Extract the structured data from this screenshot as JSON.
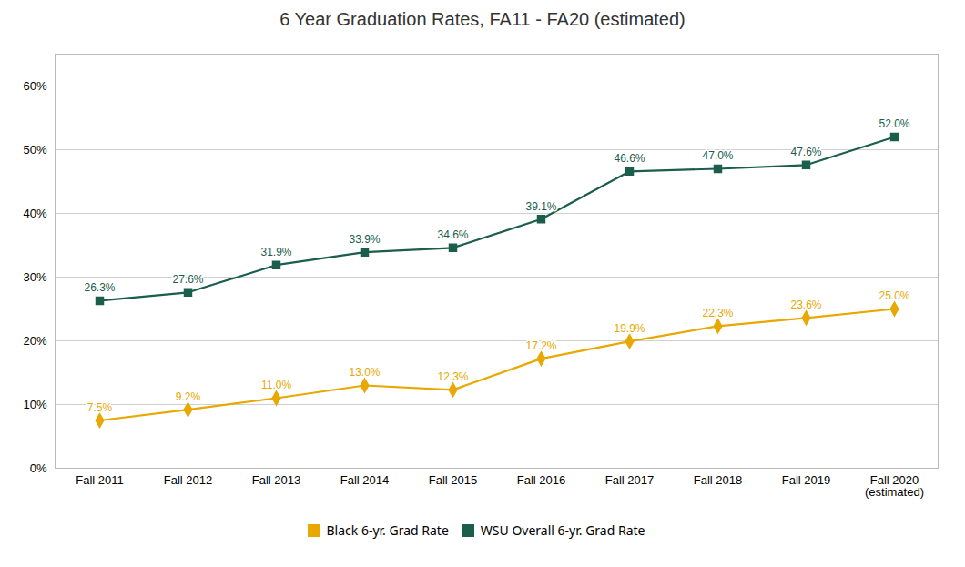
{
  "chart_data": {
    "type": "line",
    "title": "6 Year Graduation Rates, FA11 - FA20 (estimated)",
    "categories": [
      "Fall 2011",
      "Fall 2012",
      "Fall 2013",
      "Fall 2014",
      "Fall 2015",
      "Fall 2016",
      "Fall 2017",
      "Fall 2018",
      "Fall 2019",
      "Fall 2020\n(estimated)"
    ],
    "series": [
      {
        "name": "Black 6-yr. Grad Rate",
        "color": "#E8A800",
        "marker": "diamond",
        "values": [
          0.075,
          0.092,
          0.11,
          0.13,
          0.123,
          0.172,
          0.199,
          0.223,
          0.236,
          0.25
        ],
        "value_labels": [
          "7.5%",
          "9.2%",
          "11.0%",
          "13.0%",
          "12.3%",
          "17.2%",
          "19.9%",
          "22.3%",
          "23.6%",
          "25.0%"
        ]
      },
      {
        "name": "WSU Overall 6-yr. Grad Rate",
        "color": "#1B5E4B",
        "marker": "square",
        "values": [
          0.263,
          0.276,
          0.319,
          0.339,
          0.346,
          0.391,
          0.466,
          0.47,
          0.476,
          0.52
        ],
        "value_labels": [
          "26.3%",
          "27.6%",
          "31.9%",
          "33.9%",
          "34.6%",
          "39.1%",
          "46.6%",
          "47.0%",
          "47.6%",
          "52.0%"
        ]
      }
    ],
    "ylim": [
      0,
      0.65
    ],
    "yticks": [
      {
        "value": 0.0,
        "label": "0%"
      },
      {
        "value": 0.1,
        "label": "10%"
      },
      {
        "value": 0.2,
        "label": "20%"
      },
      {
        "value": 0.3,
        "label": "30%"
      },
      {
        "value": 0.4,
        "label": "40%"
      },
      {
        "value": 0.5,
        "label": "50%"
      },
      {
        "value": 0.6,
        "label": "60%"
      }
    ],
    "grid": true,
    "data_labels": true,
    "legend": "bottom"
  }
}
